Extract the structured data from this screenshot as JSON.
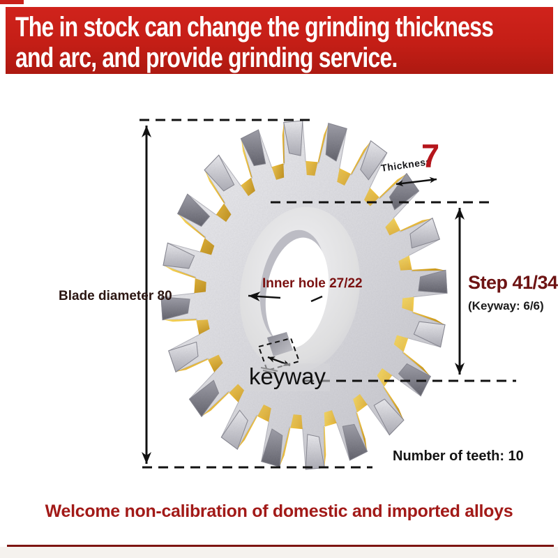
{
  "banner": {
    "line1": "The in stock can change the grinding thickness",
    "line2": "and arc, and provide grinding service."
  },
  "product": {
    "blade_diameter_label": "Blade diameter 80",
    "thickness_label": "Thickness",
    "thickness_value": "7",
    "inner_hole_label": "Inner hole 27/22",
    "step_label": "Step 41/34",
    "keyway_spec_label": "(Keyway: 6/6)",
    "keyway_label": "keyway",
    "teeth_label": "Number of teeth: 10"
  },
  "footer": {
    "message": "Welcome non-calibration of domestic and imported alloys"
  },
  "colors": {
    "banner_red": "#c41e16",
    "footer_text_red": "#a21a18",
    "dimension_maroon": "#6d1313",
    "value_red": "#b5161c",
    "rule_red": "#7d1512",
    "cutter_gold": "#e6b83c",
    "cutter_silver": "#d8d8dc",
    "tip_gray": "#6b6b75"
  }
}
